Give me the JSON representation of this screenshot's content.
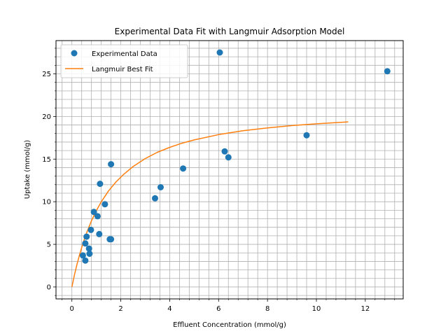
{
  "chart_data": {
    "type": "scatter",
    "title": "Experimental Data Fit with Langmuir Adsorption Model",
    "xlabel": "Effluent Concentration (mmol/g)",
    "ylabel": "Uptake (mmol/g)",
    "xlim": [
      -0.65,
      13.55
    ],
    "ylim": [
      -1.4,
      28.9
    ],
    "x_ticks": [
      0,
      2,
      4,
      6,
      8,
      10,
      12
    ],
    "y_ticks": [
      0,
      5,
      10,
      15,
      20,
      25
    ],
    "x_minor_step": 0.4,
    "y_minor_step": 1,
    "grid": "major and minor",
    "legend_position": "upper-left",
    "series": [
      {
        "name": "Experimental Data",
        "kind": "scatter",
        "color": "#1f77b4",
        "points": [
          [
            0.45,
            3.7
          ],
          [
            0.55,
            3.1
          ],
          [
            0.55,
            5.1
          ],
          [
            0.6,
            5.9
          ],
          [
            0.7,
            4.5
          ],
          [
            0.72,
            3.9
          ],
          [
            0.78,
            6.7
          ],
          [
            0.9,
            8.8
          ],
          [
            1.05,
            8.3
          ],
          [
            1.12,
            6.2
          ],
          [
            1.15,
            12.1
          ],
          [
            1.35,
            9.7
          ],
          [
            1.55,
            5.6
          ],
          [
            1.6,
            5.6
          ],
          [
            1.6,
            14.4
          ],
          [
            3.4,
            10.4
          ],
          [
            3.63,
            11.7
          ],
          [
            4.55,
            13.9
          ],
          [
            6.05,
            27.5
          ],
          [
            6.25,
            15.9
          ],
          [
            6.4,
            15.2
          ],
          [
            9.6,
            17.8
          ],
          [
            12.9,
            25.3
          ]
        ]
      },
      {
        "name": "Langmuir Best Fit",
        "kind": "line",
        "color": "#ff7f0e",
        "x": [
          0,
          0.1,
          0.2,
          0.3,
          0.4,
          0.5,
          0.6,
          0.8,
          1.0,
          1.2,
          1.5,
          1.8,
          2.1,
          2.5,
          3.0,
          3.5,
          4.0,
          4.5,
          5.0,
          6.0,
          7.0,
          8.0,
          9.0,
          10.0,
          11.3
        ],
        "y": [
          0,
          1.35,
          2.56,
          3.64,
          4.62,
          5.52,
          6.33,
          7.75,
          8.95,
          9.98,
          11.27,
          12.31,
          13.17,
          14.12,
          15.06,
          15.8,
          16.38,
          16.86,
          17.25,
          17.87,
          18.32,
          18.66,
          18.93,
          19.14,
          19.37
        ]
      }
    ]
  }
}
